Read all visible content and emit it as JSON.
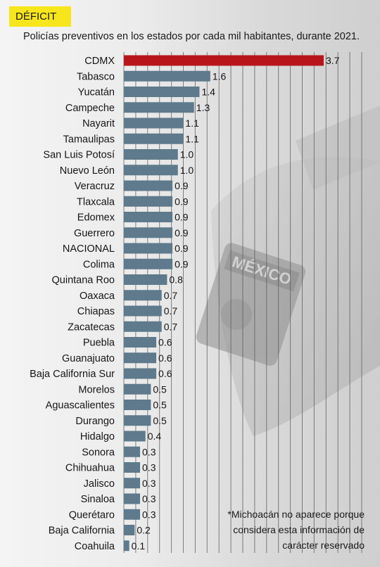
{
  "tag": "DÉFICIT",
  "subtitle": "Policías preventivos en los estados por cada mil habitantes, durante 2021.",
  "note": "*Michoacán no aparece porque considera esta información de carácter reservado",
  "colors": {
    "highlight": "#b8151b",
    "bar": "#5e7a8c",
    "tag": "#f7e61c",
    "gridline": "#5a5a5a"
  },
  "chart_data": {
    "type": "bar",
    "orientation": "horizontal",
    "categories": [
      "CDMX",
      "Tabasco",
      "Yucatán",
      "Campeche",
      "Nayarit",
      "Tamaulipas",
      "San Luis Potosí",
      "Nuevo León",
      "Veracruz",
      "Tlaxcala",
      "Edomex",
      "Guerrero",
      "NACIONAL",
      "Colima",
      "Quintana Roo",
      "Oaxaca",
      "Chiapas",
      "Zacatecas",
      "Puebla",
      "Guanajuato",
      "Baja California Sur",
      "Morelos",
      "Aguascalientes",
      "Durango",
      "Hidalgo",
      "Sonora",
      "Chihuahua",
      "Jalisco",
      "Sinaloa",
      "Querétaro",
      "Baja California",
      "Coahuila"
    ],
    "values": [
      3.7,
      1.6,
      1.4,
      1.3,
      1.1,
      1.1,
      1.0,
      1.0,
      0.9,
      0.9,
      0.9,
      0.9,
      0.9,
      0.9,
      0.8,
      0.7,
      0.7,
      0.7,
      0.6,
      0.6,
      0.6,
      0.5,
      0.5,
      0.5,
      0.4,
      0.3,
      0.3,
      0.3,
      0.3,
      0.3,
      0.2,
      0.1
    ],
    "labels": [
      "3.7",
      "1.6",
      "1.4",
      "1.3",
      "1.1",
      "1.1",
      "1.0",
      "1.0",
      "0.9",
      "0.9",
      "0.9",
      "0.9",
      "0.9",
      "0.9",
      "0.8",
      "0.7",
      "0.7",
      "0.7",
      "0.6",
      "0.6",
      "0.6",
      "0.5",
      "0.5",
      "0.5",
      "0.4",
      "0.3",
      "0.3",
      "0.3",
      "0.3",
      "0.3",
      "0.2",
      "0.1"
    ],
    "highlight": [
      "CDMX"
    ],
    "xlim": [
      0,
      3.7
    ],
    "grid": true,
    "title": "",
    "xlabel": "",
    "ylabel": ""
  }
}
